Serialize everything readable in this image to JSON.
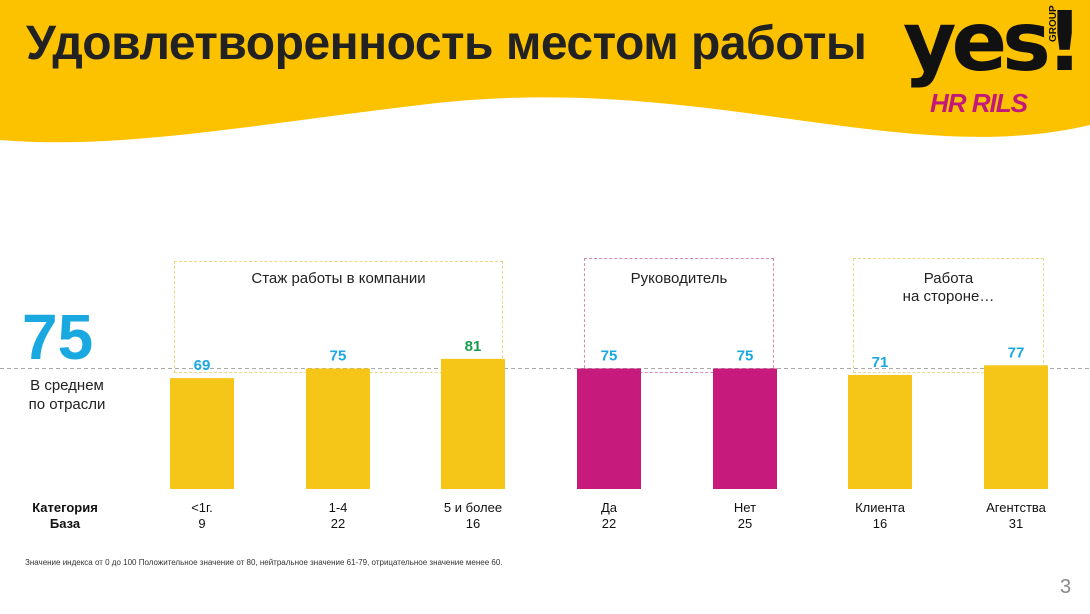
{
  "title": "Удовлетворенность местом работы",
  "logo": {
    "main": "yes!",
    "group": "GROUP",
    "sub": "HR RILS"
  },
  "colors": {
    "header": "#fcc200",
    "bar_yellow": "#f5c518",
    "bar_magenta": "#c61a7d",
    "value_blue": "#1aa8e0",
    "value_green": "#1a9b4b",
    "avg_line": "#aaaaaa"
  },
  "average": {
    "value": "75",
    "label_line1": "В среднем",
    "label_line2": "по отрасли"
  },
  "groups": [
    {
      "label": "Стаж работы в компании",
      "border": "#e6d98a"
    },
    {
      "label": "Руководитель",
      "border": "#d98ab5"
    },
    {
      "label_line1": "Работа",
      "label_line2": "на стороне…",
      "border": "#e6d98a"
    }
  ],
  "axis_headers": {
    "category": "Категория",
    "base": "База"
  },
  "chart_data": {
    "type": "bar",
    "categories": [
      "<1г.",
      "1-4",
      "5 и более",
      "Да",
      "Нет",
      "Клиента",
      "Агентства"
    ],
    "bases": [
      "9",
      "22",
      "16",
      "22",
      "25",
      "16",
      "31"
    ],
    "values": [
      69,
      75,
      81,
      75,
      75,
      71,
      77
    ],
    "bar_colors": [
      "#f5c518",
      "#f5c518",
      "#f5c518",
      "#c61a7d",
      "#c61a7d",
      "#f5c518",
      "#f5c518"
    ],
    "label_colors": [
      "#1aa8e0",
      "#1aa8e0",
      "#1a9b4b",
      "#1aa8e0",
      "#1aa8e0",
      "#1aa8e0",
      "#1aa8e0"
    ],
    "reference_line": 75
  },
  "footnote": "Значение индекса от 0 до 100      Положительное значение от 80, нейтральное значение 61-79, отрицательное значение менее 60.",
  "page_number": "3"
}
